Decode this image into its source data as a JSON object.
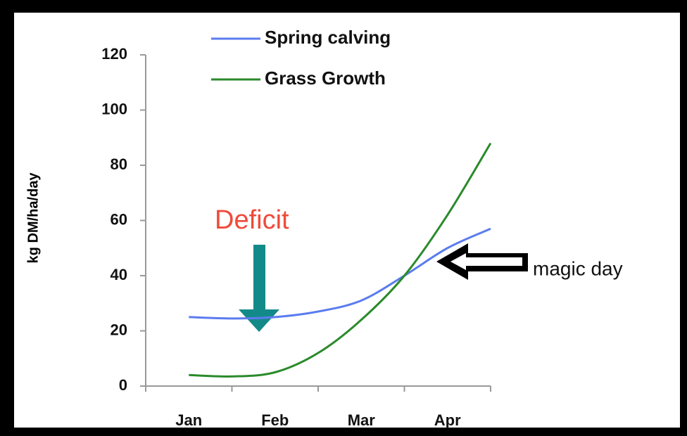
{
  "chart_data": {
    "type": "line",
    "categories": [
      "Jan",
      "Feb",
      "Mar",
      "Apr"
    ],
    "x": [
      0.5,
      1,
      1.5,
      2,
      2.5,
      3,
      3.5,
      4
    ],
    "xlim": [
      0,
      4
    ],
    "series": [
      {
        "name": "Spring calving",
        "color": "#5b7cf0",
        "values": [
          25,
          24.5,
          25,
          27,
          31,
          40,
          50,
          57
        ]
      },
      {
        "name": "Grass Growth",
        "color": "#2a8a2a",
        "values": [
          4,
          3.5,
          5,
          12,
          24,
          40,
          62,
          88
        ]
      }
    ],
    "ylabel": "kg DM/ha/day",
    "ylim": [
      0,
      120
    ],
    "yticks": [
      0,
      20,
      40,
      60,
      80,
      100,
      120
    ],
    "annotations": [
      "Deficit",
      "magic day"
    ]
  }
}
